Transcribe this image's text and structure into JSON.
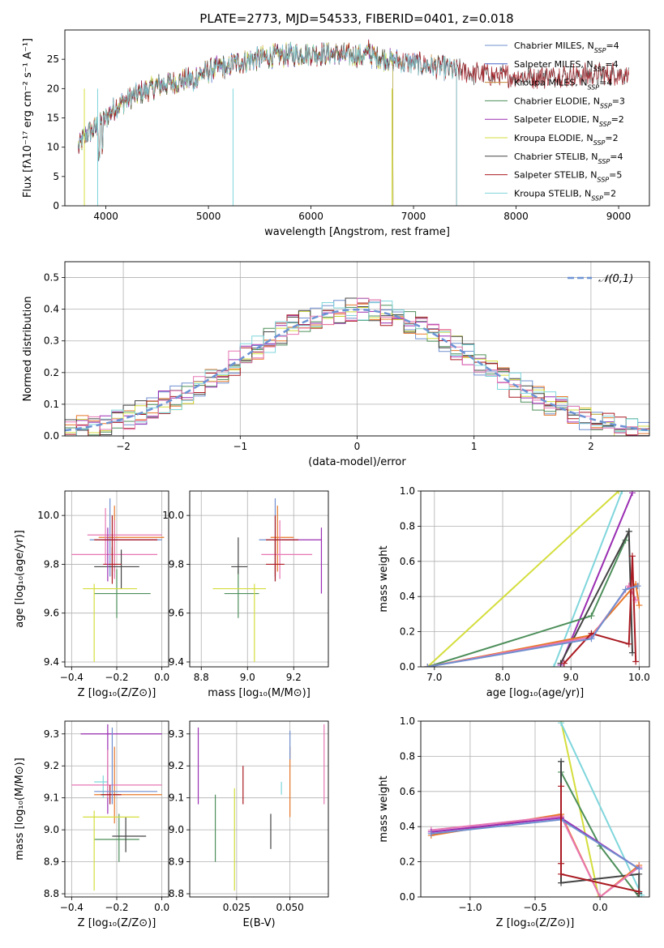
{
  "figure": {
    "title": "PLATE=2773, MJD=54533, FIBERID=0401, z=0.018"
  },
  "chart_data": [
    {
      "id": "spectrum",
      "type": "line",
      "title": "PLATE=2773, MJD=54533, FIBERID=0401, z=0.018",
      "xlabel": "wavelength [Angstrom, rest frame]",
      "ylabel": "Flux [fλ10⁻¹⁷ erg cm⁻² s⁻¹ A⁻¹]",
      "xlim": [
        3600,
        9300
      ],
      "ylim": [
        0,
        30
      ],
      "xticks": [
        4000,
        5000,
        6000,
        7000,
        8000,
        9000
      ],
      "yticks": [
        0,
        5,
        10,
        15,
        20,
        25
      ],
      "grid": false,
      "legend": "top-right",
      "continuum": [
        [
          3700,
          9
        ],
        [
          3800,
          12
        ],
        [
          3950,
          14
        ],
        [
          4100,
          17
        ],
        [
          4300,
          19
        ],
        [
          4500,
          20.5
        ],
        [
          4800,
          21.5
        ],
        [
          5000,
          23
        ],
        [
          5300,
          24.5
        ],
        [
          5600,
          25.5
        ],
        [
          6000,
          26
        ],
        [
          6300,
          25.8
        ],
        [
          6600,
          25.5
        ],
        [
          6900,
          24.5
        ],
        [
          7100,
          24
        ],
        [
          7300,
          23.5
        ],
        [
          7600,
          22.5
        ],
        [
          8000,
          22
        ],
        [
          8500,
          22.3
        ],
        [
          9000,
          22.5
        ],
        [
          9300,
          22.5
        ]
      ],
      "series": [
        {
          "name": "Chabrier MILES, N_SSP=4",
          "color": "#6f8fcf",
          "start": 3730,
          "end": 7420
        },
        {
          "name": "Salpeter MILES, N_SSP=4",
          "color": "#4a66c6",
          "start": 3730,
          "end": 7420
        },
        {
          "name": "Kroupa MILES, N_SSP=4",
          "color": "#c78c3b",
          "start": 3730,
          "end": 7420
        },
        {
          "name": "Chabrier ELODIE, N_SSP=3",
          "color": "#4d8f5a",
          "start": 3730,
          "end": 6800
        },
        {
          "name": "Salpeter ELODIE, N_SSP=2",
          "color": "#9a2db2",
          "start": 3730,
          "end": 6800
        },
        {
          "name": "Kroupa ELODIE, N_SSP=2",
          "color": "#d4de3c",
          "start": 3730,
          "end": 6800
        },
        {
          "name": "Chabrier STELIB, N_SSP=4",
          "color": "#444444",
          "start": 3730,
          "end": 9100
        },
        {
          "name": "Salpeter STELIB, N_SSP=5",
          "color": "#a91b22",
          "start": 3730,
          "end": 9100
        },
        {
          "name": "Kroupa STELIB, N_SSP=2",
          "color": "#7fd6dc",
          "start": 3730,
          "end": 7420
        }
      ]
    },
    {
      "id": "residuals",
      "type": "line",
      "xlabel": "(data-model)/error",
      "ylabel": "Normed distribution",
      "xlim": [
        -2.5,
        2.5
      ],
      "ylim": [
        0,
        0.55
      ],
      "xticks": [
        -2,
        -1,
        0,
        1,
        2
      ],
      "yticks": [
        0.0,
        0.1,
        0.2,
        0.3,
        0.4,
        0.5
      ],
      "grid": true,
      "legend": "top-right",
      "reference": {
        "name": "𝒩(0,1)",
        "color": "#6c93d4"
      },
      "bin_width": 0.1,
      "hist_colors": [
        "#6f8fcf",
        "#e8782a",
        "#4d8f5a",
        "#9a2db2",
        "#d4de3c",
        "#444444",
        "#a91b22",
        "#7fd6dc",
        "#e777b3"
      ]
    },
    {
      "id": "age_vs_Z",
      "type": "scatter",
      "xlabel": "Z [log₁₀(Z/Z⊙)]",
      "ylabel": "age  [log₁₀(age/yr)]",
      "xlim": [
        -0.43,
        0.03
      ],
      "ylim": [
        9.38,
        10.1
      ],
      "xticks": [
        -0.4,
        -0.2,
        0.0
      ],
      "yticks": [
        9.4,
        9.6,
        9.8,
        10.0
      ],
      "grid": true,
      "points": [
        {
          "x": -0.23,
          "y": 9.9,
          "ex": [
            -0.32,
            0.0
          ],
          "ey": [
            9.75,
            10.07
          ],
          "color": "#6f8fcf"
        },
        {
          "x": -0.21,
          "y": 9.91,
          "ex": [
            -0.28,
            0.01
          ],
          "ey": [
            9.77,
            10.04
          ],
          "color": "#e8782a"
        },
        {
          "x": -0.25,
          "y": 9.92,
          "ex": [
            -0.33,
            0.0
          ],
          "ey": [
            9.8,
            10.03
          ],
          "color": "#e777b3"
        },
        {
          "x": -0.2,
          "y": 9.68,
          "ex": [
            -0.3,
            -0.05
          ],
          "ey": [
            9.58,
            9.78
          ],
          "color": "#4d8f5a"
        },
        {
          "x": -0.21,
          "y": 9.84,
          "ex": [
            -0.4,
            -0.02
          ],
          "ey": [
            9.74,
            9.98
          ],
          "color": "#e777b3"
        },
        {
          "x": -0.18,
          "y": 9.79,
          "ex": [
            -0.3,
            -0.1
          ],
          "ey": [
            9.7,
            9.86
          ],
          "color": "#444444"
        },
        {
          "x": -0.22,
          "y": 9.8,
          "ex": [
            -0.26,
            -0.18
          ],
          "ey": [
            9.72,
            9.87
          ],
          "color": "#a91b22"
        },
        {
          "x": -0.3,
          "y": 9.7,
          "ex": [
            -0.35,
            -0.11
          ],
          "ey": [
            9.4,
            9.72
          ],
          "color": "#d4de3c"
        },
        {
          "x": -0.24,
          "y": 9.9,
          "ex": [
            -0.27,
            -0.02
          ],
          "ey": [
            9.73,
            9.95
          ],
          "color": "#9a2db2"
        },
        {
          "x": -0.22,
          "y": 9.9,
          "ex": [
            -0.3,
            -0.02
          ],
          "ey": [
            9.75,
            10.0
          ],
          "color": "#a91b22"
        }
      ]
    },
    {
      "id": "age_vs_mass",
      "type": "scatter",
      "xlabel": "mass [log₁₀(M/M⊙)]",
      "ylabel": "",
      "xlim": [
        8.75,
        9.35
      ],
      "ylim": [
        9.38,
        10.1
      ],
      "xticks": [
        8.8,
        9.0,
        9.2
      ],
      "yticks": [
        9.4,
        9.6,
        9.8,
        10.0
      ],
      "grid": true,
      "points": [
        {
          "x": 9.12,
          "y": 9.9,
          "ex": [
            9.05,
            9.2
          ],
          "ey": [
            9.73,
            10.07
          ],
          "color": "#6f8fcf"
        },
        {
          "x": 9.13,
          "y": 9.91,
          "ex": [
            9.1,
            9.2
          ],
          "ey": [
            9.77,
            10.04
          ],
          "color": "#e8782a"
        },
        {
          "x": 9.14,
          "y": 9.84,
          "ex": [
            9.06,
            9.28
          ],
          "ey": [
            9.74,
            9.98
          ],
          "color": "#e777b3"
        },
        {
          "x": 8.96,
          "y": 9.68,
          "ex": [
            8.9,
            9.05
          ],
          "ey": [
            9.58,
            9.78
          ],
          "color": "#4d8f5a"
        },
        {
          "x": 8.96,
          "y": 9.79,
          "ex": [
            8.93,
            9.0
          ],
          "ey": [
            9.76,
            9.91
          ],
          "color": "#444444"
        },
        {
          "x": 9.12,
          "y": 9.8,
          "ex": [
            9.08,
            9.16
          ],
          "ey": [
            9.73,
            9.9
          ],
          "color": "#a91b22"
        },
        {
          "x": 9.03,
          "y": 9.7,
          "ex": [
            8.85,
            9.08
          ],
          "ey": [
            9.4,
            9.72
          ],
          "color": "#d4de3c"
        },
        {
          "x": 9.32,
          "y": 9.9,
          "ex": [
            9.15,
            9.32
          ],
          "ey": [
            9.68,
            9.95
          ],
          "color": "#9a2db2"
        },
        {
          "x": 9.12,
          "y": 9.9,
          "ex": [
            9.08,
            9.22
          ],
          "ey": [
            9.75,
            10.0
          ],
          "color": "#a91b22"
        }
      ]
    },
    {
      "id": "weight_vs_age",
      "type": "line",
      "xlabel": "age  [log₁₀(age/yr)]",
      "ylabel": "mass weight",
      "xlim": [
        6.8,
        10.15
      ],
      "ylim": [
        0,
        1.0
      ],
      "xticks": [
        7,
        8,
        9,
        10
      ],
      "yticks": [
        0.0,
        0.2,
        0.4,
        0.6,
        0.8,
        1.0
      ],
      "grid": true,
      "series": [
        {
          "color": "#d4de3c",
          "x": [
            6.9,
            9.7
          ],
          "y": [
            0.0,
            1.0
          ]
        },
        {
          "color": "#7fd6dc",
          "x": [
            8.75,
            9.75
          ],
          "y": [
            0.0,
            1.0
          ]
        },
        {
          "color": "#9a2db2",
          "x": [
            8.85,
            9.9
          ],
          "y": [
            0.01,
            0.99
          ]
        },
        {
          "color": "#4d8f5a",
          "x": [
            6.9,
            9.3,
            9.8,
            9.85
          ],
          "y": [
            0.0,
            0.29,
            0.72,
            0.77
          ]
        },
        {
          "color": "#444444",
          "x": [
            8.85,
            9.85,
            9.9
          ],
          "y": [
            0.02,
            0.77,
            0.08
          ]
        },
        {
          "color": "#e8782a",
          "x": [
            6.9,
            9.3,
            9.95,
            10.0
          ],
          "y": [
            0.0,
            0.18,
            0.47,
            0.35
          ]
        },
        {
          "color": "#e777b3",
          "x": [
            6.9,
            9.3,
            9.85,
            9.95
          ],
          "y": [
            0.0,
            0.17,
            0.46,
            0.38
          ]
        },
        {
          "color": "#a91b22",
          "x": [
            8.9,
            9.3,
            9.85,
            9.9,
            9.95
          ],
          "y": [
            0.02,
            0.19,
            0.13,
            0.63,
            0.03
          ]
        },
        {
          "color": "#6f8fcf",
          "x": [
            6.9,
            9.3,
            9.8,
            9.98
          ],
          "y": [
            0.0,
            0.16,
            0.44,
            0.46
          ]
        }
      ]
    },
    {
      "id": "mass_vs_Z",
      "type": "scatter",
      "xlabel": "Z [log₁₀(Z/Z⊙)]",
      "ylabel": "mass [log₁₀(M/M⊙)]",
      "xlim": [
        -0.43,
        0.03
      ],
      "ylim": [
        8.79,
        9.34
      ],
      "xticks": [
        -0.4,
        -0.2,
        0.0
      ],
      "yticks": [
        8.8,
        8.9,
        9.0,
        9.1,
        9.2,
        9.3
      ],
      "grid": true,
      "points": [
        {
          "x": -0.26,
          "y": 9.15,
          "ex": [
            -0.3,
            -0.24
          ],
          "ey": [
            9.1,
            9.17
          ],
          "color": "#7fd6dc"
        },
        {
          "x": -0.24,
          "y": 9.3,
          "ex": [
            -0.36,
            0.0
          ],
          "ey": [
            9.05,
            9.33
          ],
          "color": "#9a2db2"
        },
        {
          "x": -0.21,
          "y": 9.11,
          "ex": [
            -0.3,
            0.0
          ],
          "ey": [
            9.02,
            9.26
          ],
          "color": "#e8782a"
        },
        {
          "x": -0.24,
          "y": 9.14,
          "ex": [
            -0.4,
            0.0
          ],
          "ey": [
            9.1,
            9.25
          ],
          "color": "#e777b3"
        },
        {
          "x": -0.19,
          "y": 8.97,
          "ex": [
            -0.3,
            -0.1
          ],
          "ey": [
            8.9,
            9.05
          ],
          "color": "#4d8f5a"
        },
        {
          "x": -0.16,
          "y": 8.98,
          "ex": [
            -0.22,
            -0.07
          ],
          "ey": [
            8.93,
            9.04
          ],
          "color": "#444444"
        },
        {
          "x": -0.23,
          "y": 9.11,
          "ex": [
            -0.27,
            -0.18
          ],
          "ey": [
            9.08,
            9.14
          ],
          "color": "#a91b22"
        },
        {
          "x": -0.3,
          "y": 9.04,
          "ex": [
            -0.35,
            -0.1
          ],
          "ey": [
            8.81,
            9.06
          ],
          "color": "#d4de3c"
        },
        {
          "x": -0.22,
          "y": 9.12,
          "ex": [
            -0.3,
            -0.02
          ],
          "ey": [
            9.08,
            9.32
          ],
          "color": "#6f8fcf"
        }
      ]
    },
    {
      "id": "mass_vs_ebv",
      "type": "scatter",
      "xlabel": "E(B-V)",
      "ylabel": "",
      "xlim": [
        0.003,
        0.068
      ],
      "ylim": [
        8.79,
        9.34
      ],
      "xticks": [
        0.025,
        0.05
      ],
      "xticklabels": [
        "0.025",
        "0.050"
      ],
      "yticks": [
        8.8,
        8.9,
        9.0,
        9.1,
        9.2,
        9.3
      ],
      "grid": true,
      "bars": [
        {
          "x": 0.007,
          "y0": 9.08,
          "y1": 9.32,
          "color": "#9a2db2"
        },
        {
          "x": 0.015,
          "y0": 8.9,
          "y1": 9.11,
          "color": "#4d8f5a"
        },
        {
          "x": 0.024,
          "y0": 8.81,
          "y1": 9.13,
          "color": "#d4de3c"
        },
        {
          "x": 0.028,
          "y0": 9.08,
          "y1": 9.2,
          "color": "#a91b22"
        },
        {
          "x": 0.041,
          "y0": 8.94,
          "y1": 9.05,
          "color": "#444444"
        },
        {
          "x": 0.046,
          "y0": 9.11,
          "y1": 9.15,
          "color": "#7fd6dc"
        },
        {
          "x": 0.05,
          "y0": 9.04,
          "y1": 9.26,
          "color": "#e8782a"
        },
        {
          "x": 0.05,
          "y0": 9.22,
          "y1": 9.31,
          "color": "#6f8fcf"
        },
        {
          "x": 0.066,
          "y0": 9.08,
          "y1": 9.33,
          "color": "#e777b3"
        }
      ]
    },
    {
      "id": "weight_vs_Z",
      "type": "line",
      "xlabel": "Z [log₁₀(Z/Z⊙)]",
      "ylabel": "mass weight",
      "xlim": [
        -1.38,
        0.38
      ],
      "ylim": [
        0,
        1.0
      ],
      "xticks": [
        -1.0,
        -0.5,
        0.0
      ],
      "yticks": [
        0.0,
        0.2,
        0.4,
        0.6,
        0.8,
        1.0
      ],
      "grid": true,
      "series": [
        {
          "color": "#d4de3c",
          "x": [
            -0.3,
            -0.01
          ],
          "y": [
            1.0,
            0.0
          ]
        },
        {
          "color": "#7fd6dc",
          "x": [
            -0.3,
            0.32
          ],
          "y": [
            0.99,
            0.01
          ]
        },
        {
          "color": "#4d8f5a",
          "x": [
            -0.3,
            -0.3,
            0.0,
            0.3
          ],
          "y": [
            0.77,
            0.71,
            0.29,
            0.0
          ]
        },
        {
          "color": "#444444",
          "x": [
            -0.3,
            -0.3,
            0.3,
            0.3
          ],
          "y": [
            0.77,
            0.08,
            0.13,
            0.02
          ]
        },
        {
          "color": "#e8782a",
          "x": [
            -1.3,
            -0.3,
            0.0,
            0.3
          ],
          "y": [
            0.35,
            0.47,
            0.0,
            0.18
          ]
        },
        {
          "color": "#e777b3",
          "x": [
            -1.3,
            -0.3,
            0.0,
            0.3
          ],
          "y": [
            0.38,
            0.46,
            0.0,
            0.17
          ]
        },
        {
          "color": "#9a2db2",
          "x": [
            -1.3,
            -0.3,
            0.3
          ],
          "y": [
            0.37,
            0.45,
            0.16
          ]
        },
        {
          "color": "#6f8fcf",
          "x": [
            -1.3,
            -0.3,
            0.3
          ],
          "y": [
            0.36,
            0.44,
            0.16
          ]
        },
        {
          "color": "#a91b22",
          "x": [
            -0.3,
            -0.3,
            -0.3,
            0.3
          ],
          "y": [
            0.63,
            0.19,
            0.13,
            0.03
          ]
        }
      ]
    }
  ]
}
